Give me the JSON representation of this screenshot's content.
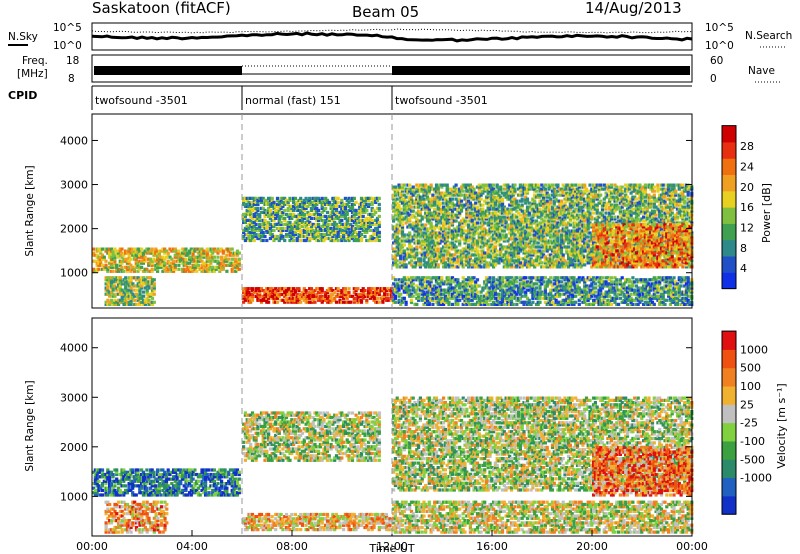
{
  "header": {
    "station": "Saskatoon (fitACF)",
    "beam": "Beam 05",
    "date": "14/Aug/2013"
  },
  "noise_panel": {
    "left_label": "N.Sky",
    "right_label": "N.Search",
    "left_ticks": [
      "10^5",
      "10^0"
    ],
    "right_ticks": [
      "10^5",
      "10^0"
    ]
  },
  "freq_panel": {
    "left_label_1": "Freq.",
    "left_label_2": "[MHz]",
    "left_ticks": [
      "18",
      "8"
    ],
    "right_label": "Nave",
    "right_ticks": [
      "60",
      "0"
    ]
  },
  "cpid": {
    "label": "CPID",
    "segments": [
      {
        "name": "twofsound -3501",
        "start_h": 0,
        "end_h": 6
      },
      {
        "name": "normal (fast) 151",
        "start_h": 6,
        "end_h": 12
      },
      {
        "name": "twofsound -3501",
        "start_h": 12,
        "end_h": 24
      }
    ]
  },
  "chart_data": [
    {
      "type": "heatmap",
      "panel": "power",
      "xlabel": "",
      "ylabel": "Slant Range [km]",
      "x_range_h": [
        0,
        24
      ],
      "ylim": [
        200,
        4600
      ],
      "yticks": [
        "1000",
        "2000",
        "3000",
        "4000"
      ],
      "colorbar": {
        "label": "Power [dB]",
        "tick_labels": [
          "4",
          "8",
          "12",
          "16",
          "20",
          "24",
          "28"
        ],
        "tick_values": [
          4,
          8,
          12,
          16,
          20,
          24,
          28
        ],
        "range": [
          0,
          32
        ],
        "colors": [
          "#1030e8",
          "#2050c8",
          "#2e8a8a",
          "#3ea050",
          "#80c040",
          "#e8d020",
          "#f0a020",
          "#f07010",
          "#e83010",
          "#d00000"
        ]
      },
      "echo_regions": [
        {
          "t0": 0.0,
          "t1": 5.9,
          "r0": 1000,
          "r1": 1550,
          "level": 0.55
        },
        {
          "t0": 0.5,
          "t1": 2.5,
          "r0": 250,
          "r1": 900,
          "level": 0.45
        },
        {
          "t0": 6.0,
          "t1": 12.0,
          "r0": 300,
          "r1": 650,
          "level": 0.85
        },
        {
          "t0": 6.0,
          "t1": 11.5,
          "r0": 1700,
          "r1": 2700,
          "level": 0.35
        },
        {
          "t0": 12.0,
          "t1": 24.0,
          "r0": 1100,
          "r1": 3000,
          "level": 0.4
        },
        {
          "t0": 20.0,
          "t1": 24.0,
          "r0": 1100,
          "r1": 2100,
          "level": 0.7
        },
        {
          "t0": 12.0,
          "t1": 24.0,
          "r0": 250,
          "r1": 900,
          "level": 0.3
        }
      ]
    },
    {
      "type": "heatmap",
      "panel": "velocity",
      "xlabel": "Time UT",
      "ylabel": "Slant Range [km]",
      "x_range_h": [
        0,
        24
      ],
      "ylim": [
        200,
        4600
      ],
      "yticks": [
        "1000",
        "2000",
        "3000",
        "4000"
      ],
      "xticks": [
        "00:00",
        "04:00",
        "08:00",
        "12:00",
        "16:00",
        "20:00",
        "00:00"
      ],
      "colorbar": {
        "label": "Velocity [m s⁻¹]",
        "tick_labels": [
          "1000",
          "500",
          "100",
          "25",
          "-25",
          "-100",
          "-500",
          "-1000"
        ],
        "tick_values": [
          1000,
          500,
          100,
          25,
          -25,
          -100,
          -500,
          -1000
        ],
        "colors": [
          "#1030c8",
          "#2060c0",
          "#2a8a6a",
          "#3aa040",
          "#80d040",
          "#c0c0c0",
          "#f0b030",
          "#f08020",
          "#f05010",
          "#e01010"
        ]
      },
      "echo_regions": [
        {
          "t0": 0.0,
          "t1": 5.9,
          "r0": 1000,
          "r1": 1550,
          "level": 0.2
        },
        {
          "t0": 0.5,
          "t1": 3.0,
          "r0": 250,
          "r1": 900,
          "level": 0.7
        },
        {
          "t0": 6.0,
          "t1": 12.0,
          "r0": 300,
          "r1": 650,
          "level": 0.65
        },
        {
          "t0": 6.0,
          "t1": 11.5,
          "r0": 1700,
          "r1": 2700,
          "level": 0.5
        },
        {
          "t0": 12.0,
          "t1": 24.0,
          "r0": 1100,
          "r1": 3000,
          "level": 0.5
        },
        {
          "t0": 20.0,
          "t1": 24.0,
          "r0": 1000,
          "r1": 2000,
          "level": 0.8
        },
        {
          "t0": 12.0,
          "t1": 24.0,
          "r0": 250,
          "r1": 900,
          "level": 0.55
        }
      ]
    }
  ]
}
